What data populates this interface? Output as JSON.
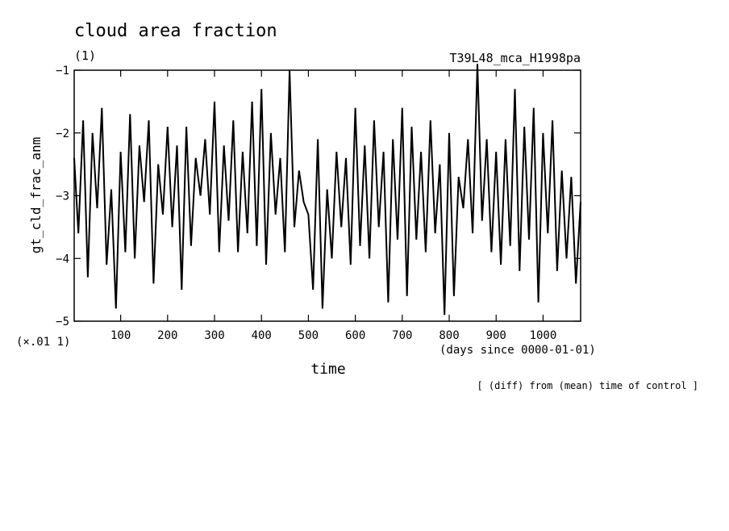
{
  "chart_data": {
    "type": "line",
    "title": "cloud area fraction",
    "subtitle_left": "(1)",
    "subtitle_right": "T39L48_mca_H1998pa",
    "xlabel": "time",
    "x_units": "(days since 0000-01-01)",
    "ylabel": "gt_cld_frac_anm",
    "y_scale_label": "(×.01 1)",
    "footnote": "[ (diff) from (mean) time of control ]",
    "xlim": [
      1,
      1080
    ],
    "ylim": [
      -5,
      -1
    ],
    "x_ticks": [
      100,
      200,
      300,
      400,
      500,
      600,
      700,
      800,
      900,
      1000
    ],
    "y_ticks": [
      -1,
      -2,
      -3,
      -4,
      -5
    ],
    "grid": false,
    "series": [
      {
        "x": [
          1,
          10,
          20,
          30,
          40,
          50,
          60,
          70,
          80,
          90,
          100,
          110,
          120,
          130,
          140,
          150,
          160,
          170,
          180,
          190,
          200,
          210,
          220,
          230,
          240,
          250,
          260,
          270,
          280,
          290,
          300,
          310,
          320,
          330,
          340,
          350,
          360,
          370,
          380,
          390,
          400,
          410,
          420,
          430,
          440,
          450,
          460,
          470,
          480,
          490,
          500,
          510,
          520,
          530,
          540,
          550,
          560,
          570,
          580,
          590,
          600,
          610,
          620,
          630,
          640,
          650,
          660,
          670,
          680,
          690,
          700,
          710,
          720,
          730,
          740,
          750,
          760,
          770,
          780,
          790,
          800,
          810,
          820,
          830,
          840,
          850,
          860,
          870,
          880,
          890,
          900,
          910,
          920,
          930,
          940,
          950,
          960,
          970,
          980,
          990,
          1000,
          1010,
          1020,
          1030,
          1040,
          1050,
          1060,
          1070,
          1080
        ],
        "y": [
          -2.4,
          -3.6,
          -1.8,
          -4.3,
          -2.0,
          -3.2,
          -1.6,
          -4.1,
          -2.9,
          -4.8,
          -2.3,
          -3.9,
          -1.7,
          -4.0,
          -2.2,
          -3.1,
          -1.8,
          -4.4,
          -2.5,
          -3.3,
          -1.9,
          -3.5,
          -2.2,
          -4.5,
          -1.9,
          -3.8,
          -2.4,
          -3.0,
          -2.1,
          -3.3,
          -1.5,
          -3.9,
          -2.2,
          -3.4,
          -1.8,
          -3.9,
          -2.3,
          -3.6,
          -1.5,
          -3.8,
          -1.3,
          -4.1,
          -2.0,
          -3.3,
          -2.4,
          -3.9,
          -1.0,
          -3.5,
          -2.6,
          -3.1,
          -3.3,
          -4.5,
          -2.1,
          -4.8,
          -2.9,
          -4.0,
          -2.3,
          -3.5,
          -2.4,
          -4.1,
          -1.6,
          -3.8,
          -2.2,
          -4.0,
          -1.8,
          -3.5,
          -2.3,
          -4.7,
          -2.1,
          -3.7,
          -1.6,
          -4.6,
          -1.9,
          -3.7,
          -2.3,
          -3.9,
          -1.8,
          -3.6,
          -2.5,
          -4.9,
          -2.0,
          -4.6,
          -2.7,
          -3.2,
          -2.1,
          -3.6,
          -0.9,
          -3.4,
          -2.1,
          -3.9,
          -2.3,
          -4.1,
          -2.1,
          -3.8,
          -1.3,
          -4.2,
          -1.9,
          -3.7,
          -1.6,
          -4.7,
          -2.0,
          -3.6,
          -1.8,
          -4.2,
          -2.6,
          -4.0,
          -2.7,
          -4.4,
          -3.1
        ]
      }
    ]
  }
}
